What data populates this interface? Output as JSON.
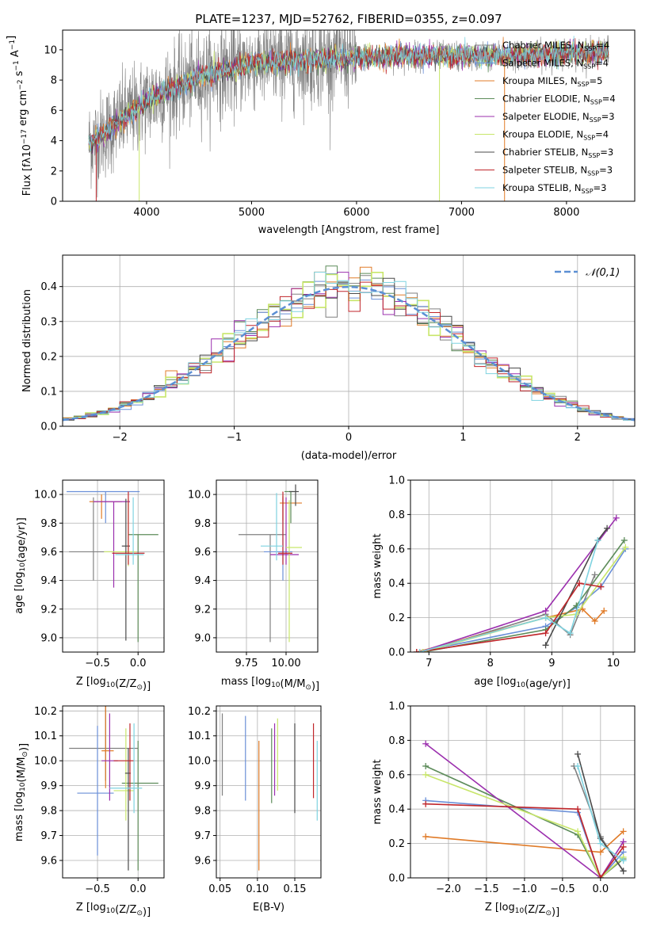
{
  "figure": {
    "title": "PLATE=1237, MJD=52762, FIBERID=0355, z=0.097"
  },
  "models": [
    {
      "label": "Chabrier MILES, N",
      "sub": "SSP",
      "suffix": "=4",
      "color": "#808080"
    },
    {
      "label": "Salpeter MILES, N",
      "sub": "SSP",
      "suffix": "=4",
      "color": "#6a8fd8"
    },
    {
      "label": "Kroupa MILES, N",
      "sub": "SSP",
      "suffix": "=5",
      "color": "#e07b28"
    },
    {
      "label": "Chabrier ELODIE, N",
      "sub": "SSP",
      "suffix": "=4",
      "color": "#5d8c5a"
    },
    {
      "label": "Salpeter ELODIE, N",
      "sub": "SSP",
      "suffix": "=3",
      "color": "#9b2fae"
    },
    {
      "label": "Kroupa ELODIE, N",
      "sub": "SSP",
      "suffix": "=4",
      "color": "#c8e66a"
    },
    {
      "label": "Chabrier STELIB, N",
      "sub": "SSP",
      "suffix": "=3",
      "color": "#4a4a4a"
    },
    {
      "label": "Salpeter STELIB, N",
      "sub": "SSP",
      "suffix": "=3",
      "color": "#c0262b"
    },
    {
      "label": "Kroupa STELIB, N",
      "sub": "SSP",
      "suffix": "=3",
      "color": "#7fd3e0"
    }
  ],
  "chart_data": [
    {
      "id": "spectrum",
      "type": "line",
      "xlabel": "wavelength [Angstrom, rest frame]",
      "ylabel_parts": {
        "pre": "Flux [f",
        "lam": "λ",
        "mid": "10",
        "exp": "−17",
        "post": " erg cm",
        "e2": "−2",
        "s": " s",
        "e1": "−1",
        " A": " A",
        "e3": "−1",
        "end": "]"
      },
      "xlim": [
        3200,
        8650
      ],
      "ylim": [
        0,
        11.3
      ],
      "xticks": [
        4000,
        5000,
        6000,
        7000,
        8000
      ],
      "yticks": [
        0,
        2,
        4,
        6,
        8,
        10
      ],
      "continuum": {
        "x": [
          3450,
          3600,
          3800,
          4000,
          4200,
          4500,
          4800,
          5000,
          5500,
          6000,
          6500,
          7000,
          7400,
          7800,
          8200,
          8400
        ],
        "y": [
          3.8,
          4.5,
          5.6,
          6.6,
          7.3,
          8.2,
          8.7,
          9.1,
          9.3,
          9.5,
          9.6,
          9.6,
          9.6,
          9.7,
          9.8,
          9.9
        ]
      }
    },
    {
      "id": "residuals",
      "type": "line",
      "xlabel": "(data-model)/error",
      "ylabel": "Normed distribution",
      "xlim": [
        -2.5,
        2.5
      ],
      "ylim": [
        0,
        0.49
      ],
      "xticks": [
        -2,
        -1,
        0,
        1,
        2
      ],
      "yticks": [
        0.0,
        0.1,
        0.2,
        0.3,
        0.4
      ],
      "legend_label": "𝒩(0,1)",
      "series": [
        {
          "name": "𝒩(0,1)",
          "mu": 0,
          "sigma": 1,
          "style": "dashed"
        }
      ]
    },
    {
      "id": "age-vs-Z",
      "type": "scatter",
      "xlabel_parts": {
        "pre": "Z [log",
        "sub": "10",
        "mid": "(Z/Z",
        "sub2": "⊙",
        "end": ")]"
      },
      "ylabel_parts": {
        "pre": "age  [log",
        "sub": "10",
        "mid": "(age/yr)]"
      },
      "xlim": [
        -0.93,
        0.32
      ],
      "ylim": [
        8.9,
        10.1
      ],
      "xticks": [
        -0.5,
        0.0
      ],
      "yticks": [
        9.0,
        9.2,
        9.4,
        9.6,
        9.8,
        10.0
      ],
      "points": [
        {
          "x": -0.55,
          "y": 9.6,
          "dx": [
            0.3,
            0.25
          ],
          "dy": [
            0.2,
            0.38
          ]
        },
        {
          "x": -0.4,
          "y": 10.02,
          "dx": [
            0.48,
            0.42
          ],
          "dy": [
            0.22,
            0.0
          ]
        },
        {
          "x": -0.45,
          "y": 9.95,
          "dx": [
            0.15,
            0.25
          ],
          "dy": [
            0.12,
            0.05
          ]
        },
        {
          "x": 0.0,
          "y": 9.72,
          "dx": [
            0.12,
            0.25
          ],
          "dy": [
            0.75,
            0.0
          ]
        },
        {
          "x": -0.3,
          "y": 9.95,
          "dx": [
            0.25,
            0.2
          ],
          "dy": [
            0.6,
            0.0
          ]
        },
        {
          "x": -0.12,
          "y": 9.6,
          "dx": [
            0.3,
            0.1
          ],
          "dy": [
            0.1,
            0.37
          ]
        },
        {
          "x": -0.15,
          "y": 9.64,
          "dx": [
            0.05,
            0.05
          ],
          "dy": [
            0.66,
            0.33
          ]
        },
        {
          "x": -0.12,
          "y": 9.59,
          "dx": [
            0.2,
            0.2
          ],
          "dy": [
            0.08,
            0.43
          ]
        },
        {
          "x": -0.06,
          "y": 9.58,
          "dx": [
            0.22,
            0.13
          ],
          "dy": [
            0.07,
            0.4
          ]
        }
      ]
    },
    {
      "id": "age-vs-mass",
      "type": "scatter",
      "xlabel_parts": {
        "pre": "mass [log",
        "sub": "10",
        "mid": "(M/M",
        "sub2": "⊙",
        "end": ")]"
      },
      "xlim": [
        9.56,
        10.2
      ],
      "ylim": [
        8.9,
        10.1
      ],
      "xticks": [
        9.75,
        10.0
      ],
      "yticks": [
        9.0,
        9.2,
        9.4,
        9.6,
        9.8,
        10.0
      ],
      "points": [
        {
          "x": 9.9,
          "y": 9.72,
          "dx": [
            0.2,
            0.1
          ],
          "dy": [
            0.75,
            0.0
          ]
        },
        {
          "x": 9.98,
          "y": 9.6,
          "dx": [
            0.12,
            0.06
          ],
          "dy": [
            0.2,
            0.38
          ]
        },
        {
          "x": 9.98,
          "y": 9.94,
          "dx": [
            0.02,
            0.12
          ],
          "dy": [
            0.12,
            0.05
          ]
        },
        {
          "x": 10.03,
          "y": 10.02,
          "dx": [
            0.04,
            0.02
          ],
          "dy": [
            0.22,
            0.0
          ]
        },
        {
          "x": 10.0,
          "y": 9.58,
          "dx": [
            0.1,
            0.08
          ],
          "dy": [
            0.07,
            0.4
          ]
        },
        {
          "x": 10.02,
          "y": 9.63,
          "dx": [
            0.02,
            0.08
          ],
          "dy": [
            0.66,
            0.33
          ]
        },
        {
          "x": 10.06,
          "y": 10.02,
          "dx": [
            0.04,
            0.02
          ],
          "dy": [
            0.1,
            0.05
          ]
        },
        {
          "x": 9.98,
          "y": 9.59,
          "dx": [
            0.03,
            0.06
          ],
          "dy": [
            0.08,
            0.43
          ]
        },
        {
          "x": 9.94,
          "y": 9.64,
          "dx": [
            0.1,
            0.04
          ],
          "dy": [
            0.1,
            0.37
          ]
        }
      ]
    },
    {
      "id": "weight-vs-age",
      "type": "line",
      "xlabel_parts": {
        "pre": "age  [log",
        "sub": "10",
        "mid": "(age/yr)]"
      },
      "ylabel": "mass weight",
      "xlim": [
        6.7,
        10.35
      ],
      "ylim": [
        0,
        1.0
      ],
      "xticks": [
        7,
        8,
        9,
        10
      ],
      "yticks": [
        0.0,
        0.2,
        0.4,
        0.6,
        0.8,
        1.0
      ],
      "series": [
        {
          "x": [
            6.9,
            8.9,
            9.3,
            9.7
          ],
          "y": [
            0.0,
            0.22,
            0.1,
            0.45
          ]
        },
        {
          "x": [
            6.8,
            8.9,
            9.4,
            9.8,
            10.2
          ],
          "y": [
            0.0,
            0.15,
            0.26,
            0.38,
            0.6
          ]
        },
        {
          "x": [
            6.8,
            8.9,
            9.5,
            9.7,
            9.85
          ],
          "y": [
            0.0,
            0.2,
            0.25,
            0.18,
            0.24
          ]
        },
        {
          "x": [
            6.9,
            8.9,
            9.4,
            10.18
          ],
          "y": [
            0.0,
            0.13,
            0.27,
            0.65
          ]
        },
        {
          "x": [
            6.85,
            8.9,
            10.05
          ],
          "y": [
            0.0,
            0.24,
            0.78
          ]
        },
        {
          "x": [
            6.9,
            8.9,
            9.4,
            10.2
          ],
          "y": [
            0.0,
            0.2,
            0.22,
            0.61
          ]
        },
        {
          "x": [
            8.9,
            9.75,
            9.9
          ],
          "y": [
            0.04,
            0.65,
            0.72
          ]
        },
        {
          "x": [
            6.8,
            8.9,
            9.45,
            9.8
          ],
          "y": [
            0.0,
            0.11,
            0.4,
            0.38
          ]
        },
        {
          "x": [
            6.85,
            8.9,
            9.3,
            9.75
          ],
          "y": [
            0.0,
            0.2,
            0.11,
            0.65
          ]
        }
      ]
    },
    {
      "id": "mass-vs-Z",
      "type": "scatter",
      "xlabel_parts": {
        "pre": "Z [log",
        "sub": "10",
        "mid": "(Z/Z",
        "sub2": "⊙",
        "end": ")]"
      },
      "ylabel_parts": {
        "pre": "mass [log",
        "sub": "10",
        "mid": "(M/M",
        "sub2": "⊙",
        "end": ")]"
      },
      "xlim": [
        -0.93,
        0.32
      ],
      "ylim": [
        9.53,
        10.22
      ],
      "xticks": [
        -0.5,
        0.0
      ],
      "yticks": [
        9.6,
        9.7,
        9.8,
        9.9,
        10.0,
        10.1,
        10.2
      ],
      "points": [
        {
          "x": -0.4,
          "y": 10.05,
          "dx": [
            0.45,
            0.4
          ],
          "dy": [
            0.13,
            0.2
          ]
        },
        {
          "x": -0.5,
          "y": 9.87,
          "dx": [
            0.25,
            0.2
          ],
          "dy": [
            0.25,
            0.27
          ]
        },
        {
          "x": -0.4,
          "y": 10.04,
          "dx": [
            0.05,
            0.1
          ],
          "dy": [
            0.15,
            0.2
          ]
        },
        {
          "x": 0.0,
          "y": 9.91,
          "dx": [
            0.2,
            0.25
          ],
          "dy": [
            0.35,
            0.17
          ]
        },
        {
          "x": -0.35,
          "y": 10.0,
          "dx": [
            0.1,
            0.1
          ],
          "dy": [
            0.16,
            0.19
          ]
        },
        {
          "x": -0.15,
          "y": 9.88,
          "dx": [
            0.15,
            0.1
          ],
          "dy": [
            0.12,
            0.25
          ]
        },
        {
          "x": -0.12,
          "y": 9.95,
          "dx": [
            0.04,
            0.03
          ],
          "dy": [
            0.39,
            0.1
          ]
        },
        {
          "x": -0.1,
          "y": 10.0,
          "dx": [
            0.2,
            0.05
          ],
          "dy": [
            0.16,
            0.15
          ]
        },
        {
          "x": -0.05,
          "y": 9.89,
          "dx": [
            0.3,
            0.1
          ],
          "dy": [
            0.1,
            0.26
          ]
        }
      ]
    },
    {
      "id": "mass-vs-ebv",
      "type": "scatter",
      "xlabel": "E(B-V)",
      "xlim": [
        0.045,
        0.185
      ],
      "ylim": [
        9.53,
        10.22
      ],
      "xticks": [
        0.05,
        0.1,
        0.15
      ],
      "yticks": [
        9.6,
        9.7,
        9.8,
        9.9,
        10.0,
        10.1,
        10.2
      ],
      "points": [
        {
          "x": 0.053,
          "y": 10.02,
          "dy": [
            0.16,
            0.17
          ]
        },
        {
          "x": 0.084,
          "y": 10.0,
          "dy": [
            0.16,
            0.18
          ]
        },
        {
          "x": 0.102,
          "y": 9.82,
          "dy": [
            0.26,
            0.26
          ]
        },
        {
          "x": 0.119,
          "y": 9.9,
          "dy": [
            0.07,
            0.23
          ]
        },
        {
          "x": 0.123,
          "y": 9.96,
          "dy": [
            0.1,
            0.19
          ]
        },
        {
          "x": 0.127,
          "y": 9.98,
          "dy": [
            0.1,
            0.19
          ]
        },
        {
          "x": 0.15,
          "y": 9.97,
          "dy": [
            0.18,
            0.18
          ]
        },
        {
          "x": 0.175,
          "y": 9.96,
          "dy": [
            0.11,
            0.19
          ]
        },
        {
          "x": 0.18,
          "y": 9.92,
          "dy": [
            0.16,
            0.16
          ]
        }
      ]
    },
    {
      "id": "weight-vs-Z",
      "type": "line",
      "xlabel_parts": {
        "pre": "Z [log",
        "sub": "10",
        "mid": "(Z/Z",
        "sub2": "⊙",
        "end": ")]"
      },
      "ylabel": "mass weight",
      "xlim": [
        -2.5,
        0.45
      ],
      "ylim": [
        0,
        1.0
      ],
      "xticks": [
        -2.0,
        -1.5,
        -1.0,
        -0.5,
        0.0
      ],
      "yticks": [
        0.0,
        0.2,
        0.4,
        0.6,
        0.8,
        1.0
      ],
      "series": [
        {
          "x": [
            -0.35,
            0.0,
            0.3
          ],
          "y": [
            0.65,
            0.24,
            0.04
          ]
        },
        {
          "x": [
            -2.3,
            -0.3,
            0.0,
            0.3
          ],
          "y": [
            0.45,
            0.38,
            0.0,
            0.15
          ]
        },
        {
          "x": [
            -2.3,
            0.0,
            0.3
          ],
          "y": [
            0.24,
            0.15,
            0.27
          ]
        },
        {
          "x": [
            -2.3,
            -0.3,
            0.0,
            0.3
          ],
          "y": [
            0.65,
            0.25,
            0.0,
            0.11
          ]
        },
        {
          "x": [
            -2.3,
            0.0,
            0.3
          ],
          "y": [
            0.78,
            0.0,
            0.21
          ]
        },
        {
          "x": [
            -2.3,
            -0.3,
            0.0,
            0.3
          ],
          "y": [
            0.6,
            0.27,
            0.0,
            0.12
          ]
        },
        {
          "x": [
            -0.3,
            0.0,
            0.3
          ],
          "y": [
            0.72,
            0.23,
            0.04
          ]
        },
        {
          "x": [
            -2.3,
            -0.3,
            0.0,
            0.3
          ],
          "y": [
            0.43,
            0.4,
            0.0,
            0.18
          ]
        },
        {
          "x": [
            -0.3,
            0.0,
            0.3
          ],
          "y": [
            0.65,
            0.2,
            0.1
          ]
        }
      ]
    }
  ]
}
